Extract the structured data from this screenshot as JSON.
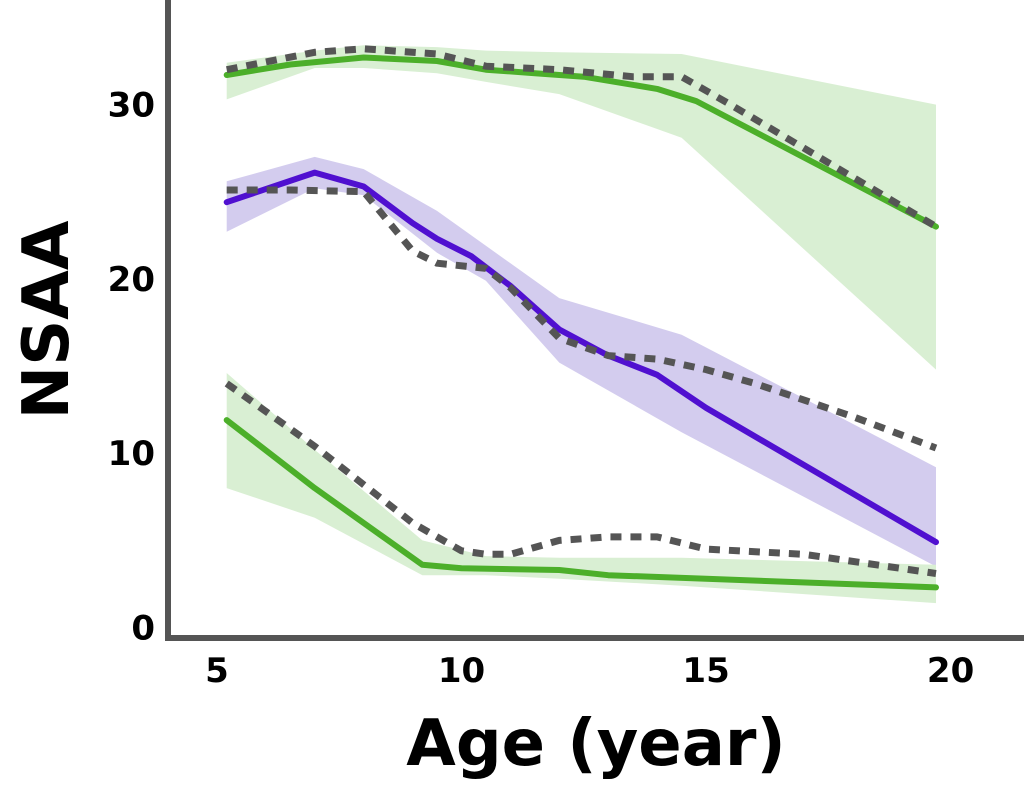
{
  "chart_data": {
    "type": "line",
    "title": "",
    "xlabel": "Age (year)",
    "ylabel": "NSAA",
    "xlim": [
      4,
      21.5
    ],
    "ylim": [
      -0.6,
      36
    ],
    "xticks": [
      5,
      10,
      15,
      20
    ],
    "yticks": [
      0,
      10,
      20,
      30
    ],
    "grid": false,
    "colors": {
      "green": "#4caf2a",
      "green_band": "#d9efd3",
      "purple": "#5010d0",
      "purple_band": "#d3ccee",
      "dotted": "#555555"
    },
    "bands": [
      {
        "color": "green_band",
        "x": [
          5.2,
          7.0,
          8.0,
          9.5,
          10.5,
          12.0,
          14.5,
          19.7
        ],
        "upper": [
          32.4,
          33.1,
          33.4,
          33.3,
          33.1,
          33.0,
          32.9,
          30.0
        ],
        "lower": [
          30.3,
          32.1,
          32.1,
          31.8,
          31.3,
          30.6,
          28.1,
          14.8
        ]
      },
      {
        "color": "purple_band",
        "x": [
          5.2,
          7.0,
          8.0,
          9.5,
          10.5,
          12.0,
          14.5,
          19.7
        ],
        "upper": [
          25.6,
          27.0,
          26.3,
          23.9,
          21.9,
          18.9,
          16.8,
          9.2
        ],
        "lower": [
          22.7,
          25.2,
          24.8,
          21.5,
          19.9,
          15.2,
          11.2,
          3.5
        ]
      },
      {
        "color": "green_band",
        "x": [
          5.2,
          7.0,
          9.2,
          10.5,
          12.0,
          14.5,
          19.7
        ],
        "upper": [
          14.6,
          10.2,
          5.0,
          4.1,
          4.0,
          4.0,
          3.6
        ],
        "lower": [
          8.0,
          6.3,
          3.0,
          3.0,
          2.8,
          2.4,
          1.4
        ]
      }
    ],
    "series": [
      {
        "color": "green",
        "style": "solid",
        "x": [
          5.2,
          6.5,
          8.0,
          9.5,
          10.5,
          11.5,
          12.5,
          14.0,
          14.8,
          19.7
        ],
        "values": [
          31.7,
          32.3,
          32.7,
          32.5,
          32.0,
          31.8,
          31.6,
          30.9,
          30.2,
          23.0
        ]
      },
      {
        "color": "purple",
        "style": "solid",
        "x": [
          5.2,
          7.0,
          8.0,
          9.0,
          9.5,
          10.2,
          11.0,
          12.0,
          13.0,
          14.0,
          15.0,
          19.7
        ],
        "values": [
          24.4,
          26.1,
          25.3,
          23.2,
          22.3,
          21.3,
          19.6,
          17.1,
          15.6,
          14.5,
          12.6,
          4.9
        ]
      },
      {
        "color": "green",
        "style": "solid",
        "x": [
          5.2,
          7.0,
          9.2,
          10.0,
          12.0,
          13.0,
          15.0,
          19.7
        ],
        "values": [
          11.9,
          8.0,
          3.6,
          3.4,
          3.3,
          3.0,
          2.8,
          2.3
        ]
      },
      {
        "color": "dotted",
        "style": "dotted",
        "x": [
          5.2,
          7.0,
          8.0,
          9.5,
          10.5,
          12.0,
          13.5,
          14.5,
          15.5,
          19.7
        ],
        "values": [
          32.0,
          33.0,
          33.2,
          32.9,
          32.2,
          32.0,
          31.6,
          31.6,
          30.0,
          23.0
        ]
      },
      {
        "color": "dotted",
        "style": "dotted",
        "x": [
          5.2,
          6.5,
          8.0,
          9.0,
          9.5,
          10.5,
          11.0,
          12.0,
          13.0,
          14.0,
          15.0,
          16.0,
          18.0,
          19.7
        ],
        "values": [
          25.1,
          25.1,
          25.0,
          21.6,
          20.9,
          20.6,
          19.5,
          16.6,
          15.6,
          15.4,
          14.8,
          14.0,
          12.1,
          10.3
        ]
      },
      {
        "color": "dotted",
        "style": "dotted",
        "x": [
          5.2,
          7.0,
          9.0,
          10.0,
          10.5,
          11.0,
          12.0,
          13.0,
          14.0,
          15.0,
          17.0,
          19.7
        ],
        "values": [
          14.0,
          10.4,
          6.0,
          4.4,
          4.2,
          4.2,
          5.0,
          5.2,
          5.2,
          4.5,
          4.2,
          3.1
        ]
      }
    ]
  }
}
